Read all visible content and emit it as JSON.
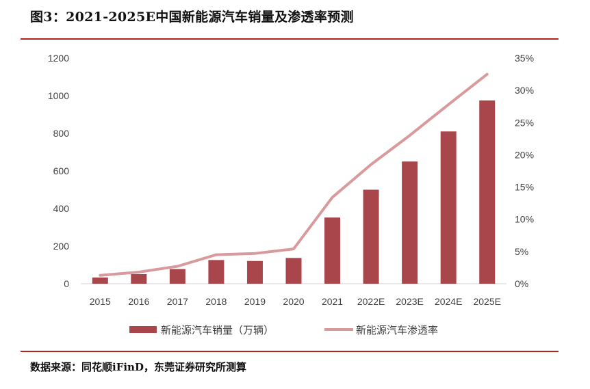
{
  "title": "图3：2021-2025E中国新能源汽车销量及渗透率预测",
  "source": "数据来源：同花顺iFinD，东莞证券研究所测算",
  "colors": {
    "bar": "#a9464b",
    "line": "#d89a9c",
    "rule": "#b22222"
  },
  "chart_data": {
    "type": "bar",
    "categories": [
      "2015",
      "2016",
      "2017",
      "2018",
      "2019",
      "2020",
      "2021",
      "2022E",
      "2023E",
      "2024E",
      "2025E"
    ],
    "series": [
      {
        "name": "新能源汽车销量（万辆）",
        "type": "bar",
        "axis": "left",
        "values": [
          33,
          51,
          78,
          126,
          121,
          137,
          352,
          500,
          650,
          810,
          975
        ]
      },
      {
        "name": "新能源汽车渗透率",
        "type": "line",
        "axis": "right",
        "values": [
          1.3,
          1.8,
          2.7,
          4.5,
          4.7,
          5.4,
          13.4,
          18.5,
          23.0,
          27.8,
          32.5
        ]
      }
    ],
    "yleft": {
      "min": 0,
      "max": 1200,
      "ticks": [
        "0",
        "200",
        "400",
        "600",
        "800",
        "1000",
        "1200"
      ]
    },
    "yright": {
      "min": 0,
      "max": 35,
      "ticks": [
        "0%",
        "5%",
        "10%",
        "15%",
        "20%",
        "25%",
        "30%",
        "35%"
      ]
    },
    "legend": "bottom"
  }
}
